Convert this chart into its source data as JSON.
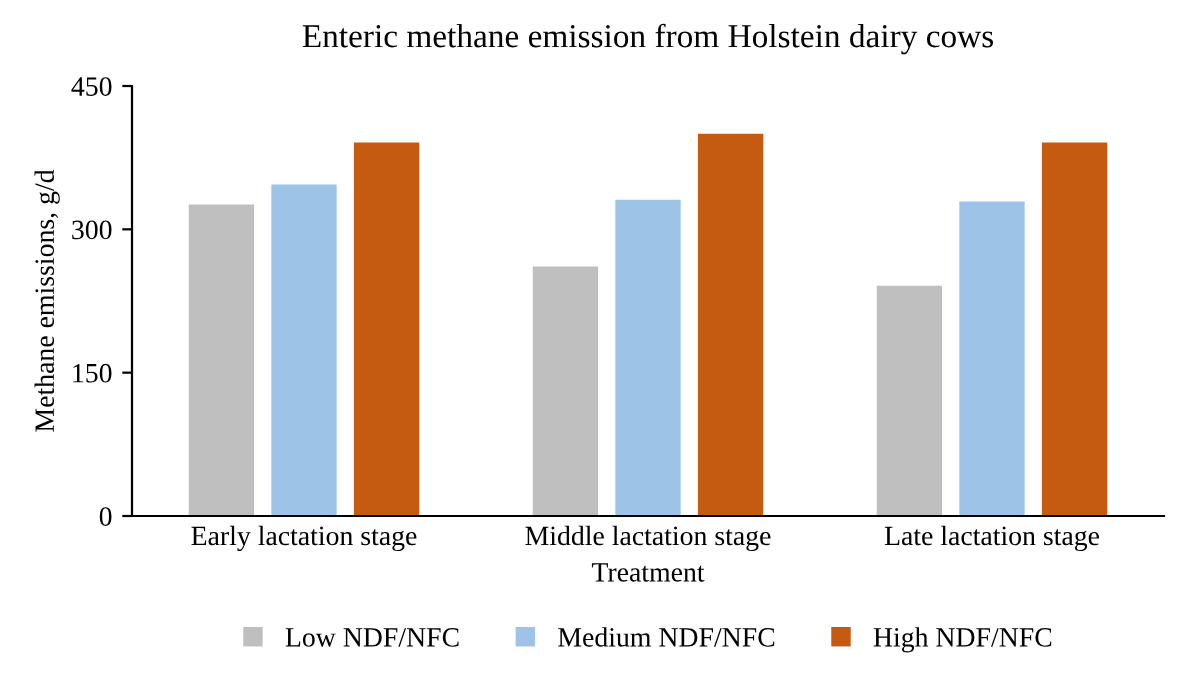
{
  "chart_data": {
    "type": "bar",
    "title": "Enteric methane emission from Holstein dairy cows",
    "xlabel": "Treatment",
    "ylabel": "Methane emissions, g/d",
    "categories": [
      "Early lactation stage",
      "Middle lactation stage",
      "Late lactation stage"
    ],
    "series": [
      {
        "name": "Low NDF/NFC",
        "color": "#bfbfbf",
        "values": [
          326,
          261,
          241
        ]
      },
      {
        "name": "Medium NDF/NFC",
        "color": "#9dc3e6",
        "values": [
          347,
          331,
          329
        ]
      },
      {
        "name": "High NDF/NFC",
        "color": "#c55a11",
        "values": [
          391,
          400,
          391
        ]
      }
    ],
    "ylim": [
      0,
      450
    ],
    "yticks": [
      0,
      150,
      300,
      450
    ],
    "grid": false,
    "legend": "bottom"
  }
}
